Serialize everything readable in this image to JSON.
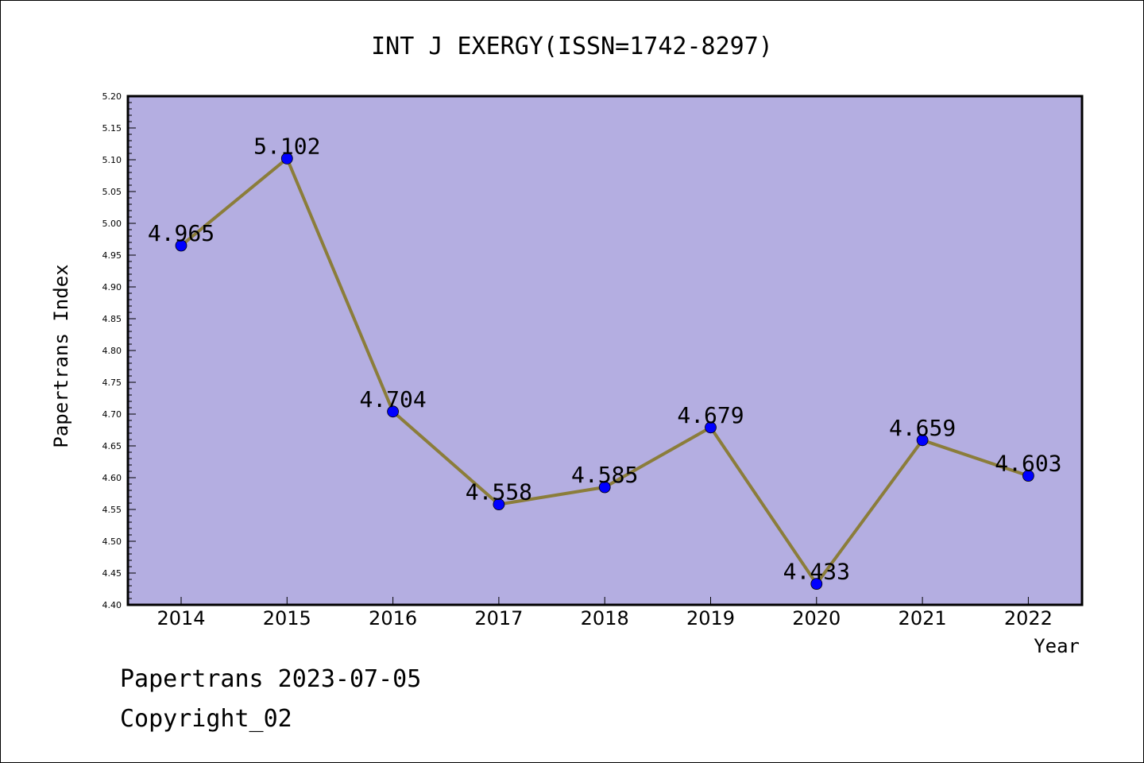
{
  "chart_data": {
    "type": "line",
    "title": "INT J EXERGY(ISSN=1742-8297)",
    "xlabel": "Year",
    "ylabel": "Papertrans Index",
    "categories": [
      "2014",
      "2015",
      "2016",
      "2017",
      "2018",
      "2019",
      "2020",
      "2021",
      "2022"
    ],
    "series": [
      {
        "values": [
          4.965,
          5.102,
          4.704,
          4.558,
          4.585,
          4.679,
          4.433,
          4.659,
          4.603
        ]
      }
    ],
    "data_labels": [
      "4.965",
      "5.102",
      "4.704",
      "4.558",
      "4.585",
      "4.679",
      "4.433",
      "4.659",
      "4.603"
    ],
    "ylim": [
      4.4,
      5.2
    ],
    "yticks": [
      "4.40",
      "4.45",
      "4.50",
      "4.55",
      "4.60",
      "4.65",
      "4.70",
      "4.75",
      "4.80",
      "4.85",
      "4.90",
      "4.95",
      "5.00",
      "5.05",
      "5.10",
      "5.15",
      "5.20"
    ],
    "grid": false,
    "colors": {
      "plot_background": "#b4aee1",
      "line": "#8b7d3a",
      "marker": "#0000ff"
    }
  },
  "footer": {
    "line1": "Papertrans 2023-07-05",
    "line2": "Copyright_02"
  }
}
